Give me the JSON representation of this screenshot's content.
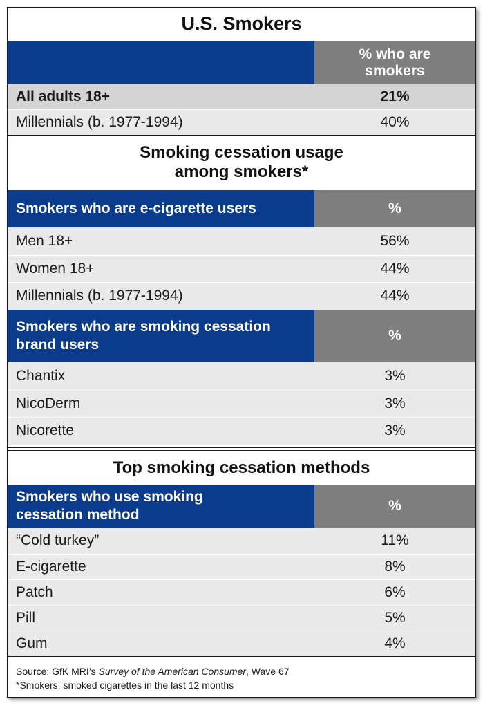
{
  "section1": {
    "title": "U.S. Smokers",
    "header": {
      "left": "",
      "right": "% who are smokers"
    },
    "rows": [
      {
        "label": "All adults 18+",
        "value": "21%"
      },
      {
        "label": "Millennials (b. 1977-1994)",
        "value": "40%"
      }
    ]
  },
  "section2": {
    "title": "Smoking cessation usage among smokers*",
    "table1": {
      "header": {
        "left": "Smokers who are e-cigarette users",
        "right": "%"
      },
      "rows": [
        {
          "label": "Men 18+",
          "value": "56%"
        },
        {
          "label": "Women 18+",
          "value": "44%"
        },
        {
          "label": "Millennials (b. 1977-1994)",
          "value": "44%"
        }
      ]
    },
    "table2": {
      "header": {
        "left": "Smokers who are smoking cessation brand users",
        "right": "%"
      },
      "rows": [
        {
          "label": "Chantix",
          "value": "3%"
        },
        {
          "label": "NicoDerm",
          "value": "3%"
        },
        {
          "label": "Nicorette",
          "value": "3%"
        }
      ]
    }
  },
  "section3": {
    "title": "Top smoking cessation methods",
    "header": {
      "left": "Smokers who use smoking cessation method",
      "right": "%"
    },
    "rows": [
      {
        "label": "“Cold turkey”",
        "value": "11%"
      },
      {
        "label": "E-cigarette",
        "value": "8%"
      },
      {
        "label": "Patch",
        "value": "6%"
      },
      {
        "label": "Pill",
        "value": "5%"
      },
      {
        "label": "Gum",
        "value": "4%"
      }
    ]
  },
  "footer": {
    "source_prefix": "Source: GfK MRI’s ",
    "source_title": "Survey of the American Consumer",
    "source_suffix": ", Wave 67",
    "note": "*Smokers: smoked cigarettes in the last 12 months"
  },
  "colors": {
    "header_blue": "#0b3c8c",
    "header_gray": "#7f7f7f",
    "row_alt": "#e9e9e9",
    "row_bold": "#d4d4d4"
  }
}
